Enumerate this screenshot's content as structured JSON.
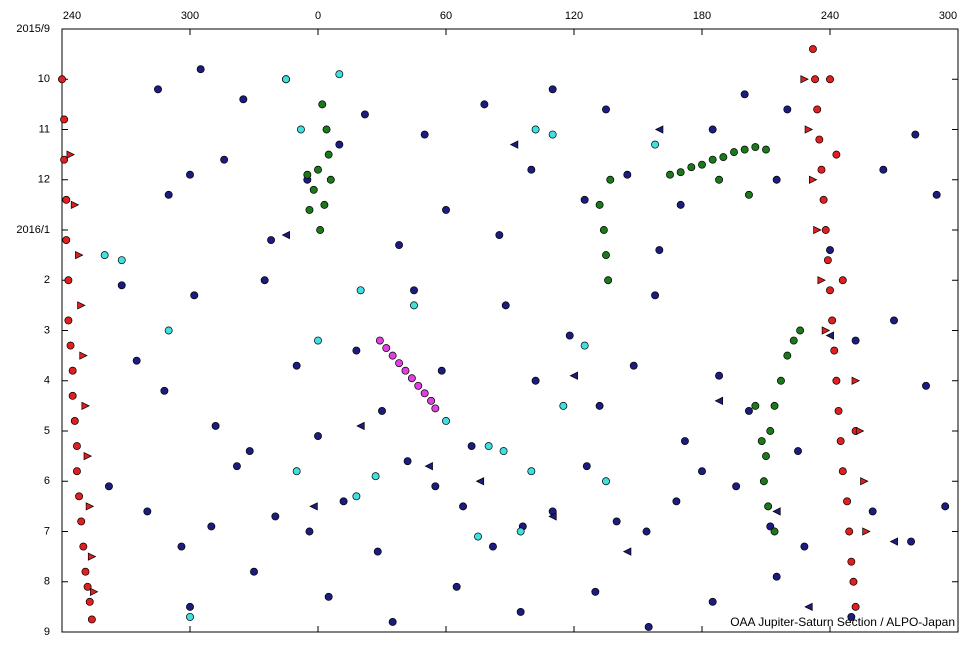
{
  "chart_data": {
    "type": "scatter",
    "source": "OAA Jupiter-Saturn Section / ALPO-Japan",
    "xlim": [
      240,
      660
    ],
    "xticks": [
      240,
      300,
      {
        "value": 360,
        "label": "0"
      },
      {
        "value": 420,
        "label": "60"
      },
      {
        "value": 480,
        "label": "120"
      },
      {
        "value": 540,
        "label": "180"
      },
      {
        "value": 600,
        "label": "240"
      },
      {
        "value": 660,
        "label": "300"
      }
    ],
    "ylim": [
      0,
      12
    ],
    "y_inverted": true,
    "yticks": [
      {
        "value": 0,
        "label": "2015/9"
      },
      {
        "value": 1,
        "label": "10"
      },
      {
        "value": 2,
        "label": "11"
      },
      {
        "value": 3,
        "label": "12"
      },
      {
        "value": 4,
        "label": "2016/1"
      },
      {
        "value": 5,
        "label": "2"
      },
      {
        "value": 6,
        "label": "3"
      },
      {
        "value": 7,
        "label": "4"
      },
      {
        "value": 8,
        "label": "5"
      },
      {
        "value": 9,
        "label": "6"
      },
      {
        "value": 10,
        "label": "7"
      },
      {
        "value": 11,
        "label": "8"
      },
      {
        "value": 12,
        "label": "9"
      }
    ],
    "series": [
      {
        "color": "#1c1c80",
        "marker": "circle",
        "x": [
          285,
          290,
          300,
          305,
          316,
          325,
          338,
          345,
          355,
          370,
          382,
          398,
          410,
          420,
          438,
          445,
          460,
          470,
          485,
          495,
          505,
          520,
          530,
          545,
          560,
          575,
          580,
          600,
          625,
          640,
          650,
          268,
          275,
          288,
          302,
          312,
          328,
          335,
          350,
          360,
          378,
          390,
          405,
          418,
          432,
          448,
          462,
          478,
          492,
          508,
          518,
          532,
          548,
          562,
          585,
          612,
          630,
          645,
          262,
          280,
          296,
          310,
          322,
          340,
          356,
          372,
          388,
          402,
          415,
          428,
          442,
          456,
          470,
          486,
          500,
          514,
          528,
          540,
          556,
          572,
          588,
          620,
          638,
          654,
          300,
          330,
          365,
          395,
          425,
          455,
          490,
          515,
          545,
          575,
          610
        ],
        "values": [
          1.2,
          3.3,
          2.9,
          0.8,
          2.6,
          1.4,
          4.2,
          1.0,
          3.0,
          2.3,
          1.7,
          4.3,
          2.1,
          3.6,
          1.5,
          4.1,
          2.8,
          1.2,
          3.4,
          1.6,
          2.9,
          4.4,
          3.5,
          2.0,
          1.3,
          3.0,
          1.6,
          4.4,
          2.8,
          2.1,
          3.3,
          5.1,
          6.6,
          7.2,
          5.3,
          7.9,
          8.4,
          5.0,
          6.7,
          8.1,
          6.4,
          7.6,
          5.2,
          6.8,
          8.3,
          5.5,
          7.0,
          6.1,
          7.5,
          6.7,
          5.3,
          8.2,
          6.9,
          7.6,
          8.4,
          6.2,
          5.8,
          7.1,
          9.1,
          9.6,
          10.3,
          9.9,
          8.7,
          9.7,
          10.0,
          9.4,
          10.4,
          8.6,
          9.1,
          9.5,
          10.3,
          9.9,
          9.6,
          8.7,
          9.8,
          10.0,
          9.4,
          8.8,
          9.1,
          9.9,
          10.3,
          9.6,
          10.2,
          9.5,
          11.5,
          10.8,
          11.3,
          11.8,
          11.1,
          11.6,
          11.2,
          11.9,
          11.4,
          10.9,
          11.7
        ]
      },
      {
        "color": "#1c1c80",
        "marker": "triangle-left",
        "x": [
          345,
          380,
          412,
          436,
          452,
          480,
          520,
          548,
          575,
          600,
          630,
          358,
          470,
          505,
          590
        ],
        "values": [
          4.1,
          7.9,
          8.7,
          9.0,
          2.3,
          6.9,
          2.0,
          7.4,
          9.6,
          6.1,
          10.2,
          9.5,
          9.7,
          10.4,
          11.5
        ]
      },
      {
        "color": "#40e0e0",
        "marker": "circle",
        "x": [
          260,
          268,
          290,
          345,
          352,
          370,
          360,
          378,
          387,
          405,
          420,
          440,
          447,
          460,
          462,
          470,
          475,
          485,
          495,
          518,
          350,
          300,
          380,
          435,
          455
        ],
        "values": [
          4.5,
          4.6,
          6.0,
          1.0,
          2.0,
          0.9,
          6.2,
          9.3,
          8.9,
          5.5,
          7.8,
          8.3,
          8.4,
          8.8,
          2.0,
          2.1,
          7.5,
          6.3,
          9.0,
          2.3,
          8.8,
          11.7,
          5.2,
          10.1,
          10.0
        ]
      },
      {
        "color": "#1a7a1a",
        "marker": "circle",
        "x": [
          525,
          530,
          535,
          540,
          545,
          550,
          555,
          560,
          565,
          570,
          548,
          562,
          580,
          577,
          574,
          572,
          570,
          569,
          571,
          574,
          568,
          565,
          583,
          586,
          362,
          364,
          365,
          366,
          363,
          361,
          360,
          358,
          356,
          355,
          492,
          494,
          495,
          496,
          497
        ],
        "values": [
          2.9,
          2.85,
          2.75,
          2.7,
          2.6,
          2.55,
          2.45,
          2.4,
          2.35,
          2.4,
          3.0,
          3.3,
          6.5,
          7.0,
          7.5,
          8.0,
          8.5,
          9.0,
          9.5,
          10.0,
          8.2,
          7.5,
          6.2,
          6.0,
          1.5,
          2.0,
          2.5,
          3.0,
          3.5,
          4.0,
          2.8,
          3.2,
          3.6,
          2.9,
          3.5,
          4.0,
          4.5,
          5.0,
          3.0
        ]
      },
      {
        "color": "#e040e0",
        "marker": "circle",
        "x": [
          389,
          392,
          395,
          398,
          401,
          404,
          407,
          410,
          413,
          415
        ],
        "values": [
          6.2,
          6.35,
          6.5,
          6.65,
          6.8,
          6.95,
          7.1,
          7.25,
          7.4,
          7.55
        ]
      },
      {
        "color": "#e02020",
        "marker": "circle",
        "x": [
          240,
          241,
          241,
          242,
          242,
          243,
          243,
          244,
          245,
          245,
          246,
          247,
          247,
          248,
          249,
          250,
          251,
          252,
          253,
          254,
          592,
          593,
          594,
          595,
          596,
          597,
          598,
          599,
          600,
          601,
          602,
          603,
          604,
          605,
          606,
          608,
          609,
          610,
          611,
          612,
          600,
          603,
          606,
          612
        ],
        "values": [
          1.0,
          1.8,
          2.6,
          3.4,
          4.2,
          5.0,
          5.8,
          6.3,
          6.8,
          7.3,
          7.8,
          8.3,
          8.8,
          9.3,
          9.8,
          10.3,
          10.8,
          11.1,
          11.4,
          11.75,
          0.4,
          1.0,
          1.6,
          2.2,
          2.8,
          3.4,
          4.0,
          4.6,
          5.2,
          5.8,
          6.4,
          7.0,
          7.6,
          8.2,
          8.8,
          9.4,
          10.0,
          10.6,
          11.0,
          11.5,
          1.0,
          2.5,
          5.0,
          8.0
        ]
      },
      {
        "color": "#e02020",
        "marker": "triangle-right",
        "x": [
          244,
          246,
          248,
          249,
          250,
          251,
          252,
          253,
          254,
          255,
          588,
          590,
          592,
          594,
          596,
          598,
          612,
          614,
          616,
          617
        ],
        "values": [
          2.5,
          3.5,
          4.5,
          5.5,
          6.5,
          7.5,
          8.5,
          9.5,
          10.5,
          11.2,
          1.0,
          2.0,
          3.0,
          4.0,
          5.0,
          6.0,
          7.0,
          8.0,
          9.0,
          10.0
        ]
      }
    ]
  }
}
